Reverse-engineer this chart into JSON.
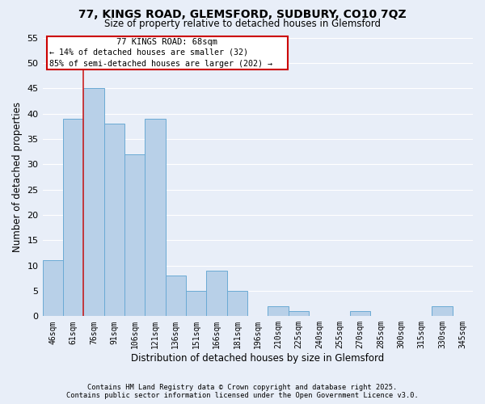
{
  "title": "77, KINGS ROAD, GLEMSFORD, SUDBURY, CO10 7QZ",
  "subtitle": "Size of property relative to detached houses in Glemsford",
  "xlabel": "Distribution of detached houses by size in Glemsford",
  "ylabel": "Number of detached properties",
  "bar_labels": [
    "46sqm",
    "61sqm",
    "76sqm",
    "91sqm",
    "106sqm",
    "121sqm",
    "136sqm",
    "151sqm",
    "166sqm",
    "181sqm",
    "196sqm",
    "210sqm",
    "225sqm",
    "240sqm",
    "255sqm",
    "270sqm",
    "285sqm",
    "300sqm",
    "315sqm",
    "330sqm",
    "345sqm"
  ],
  "bar_values": [
    11,
    39,
    45,
    38,
    32,
    39,
    8,
    5,
    9,
    5,
    0,
    2,
    1,
    0,
    0,
    1,
    0,
    0,
    0,
    2,
    0
  ],
  "bar_color": "#b8d0e8",
  "bar_edge_color": "#6aaad4",
  "background_color": "#e8eef8",
  "plot_bg_color": "#e8eef8",
  "grid_color": "#ffffff",
  "annotation_box_bg": "#ffffff",
  "annotation_box_edge": "#cc0000",
  "red_line_color": "#cc2222",
  "property_label": "77 KINGS ROAD: 68sqm",
  "annotation_line1": "← 14% of detached houses are smaller (32)",
  "annotation_line2": "85% of semi-detached houses are larger (202) →",
  "ylim": [
    0,
    55
  ],
  "yticks": [
    0,
    5,
    10,
    15,
    20,
    25,
    30,
    35,
    40,
    45,
    50,
    55
  ],
  "footer_line1": "Contains HM Land Registry data © Crown copyright and database right 2025.",
  "footer_line2": "Contains public sector information licensed under the Open Government Licence v3.0.",
  "red_line_index": 1.5
}
